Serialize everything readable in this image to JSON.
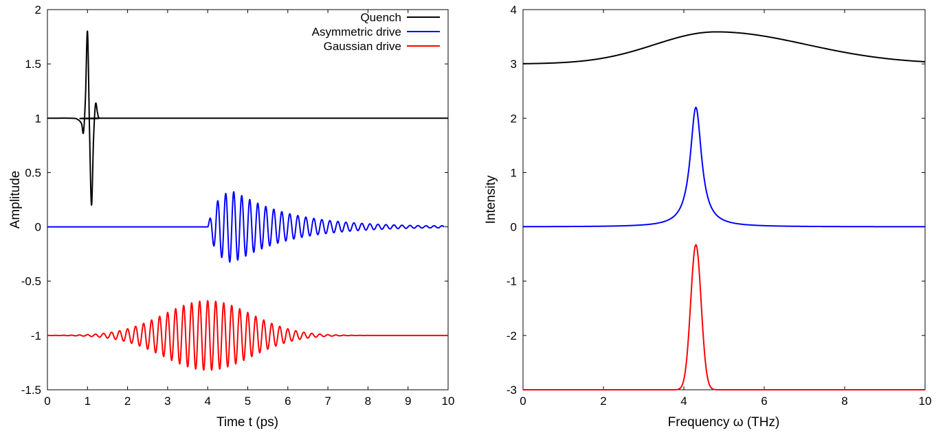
{
  "chart_data": [
    {
      "type": "line",
      "title": "",
      "xlabel": "Time t (ps)",
      "ylabel": "Amplitude",
      "xlim": [
        0,
        10
      ],
      "ylim": [
        -1.5,
        2
      ],
      "xticks": [
        0,
        1,
        2,
        3,
        4,
        5,
        6,
        7,
        8,
        9,
        10
      ],
      "xtick_labels": [
        "0",
        "1",
        "2",
        "3",
        "4",
        "5",
        "6",
        "7",
        "8",
        "9",
        "10"
      ],
      "yticks": [
        -1.5,
        -1,
        -0.5,
        0,
        0.5,
        1,
        1.5,
        2
      ],
      "ytick_labels": [
        "-1.5",
        "-1",
        "-0.5",
        "0",
        "0.5",
        "1",
        "1.5",
        "2"
      ],
      "grid": false,
      "legend": "top-right",
      "series": [
        {
          "name": "Quench",
          "color": "#000000",
          "baseline": 1,
          "description": "sharp pulse near t = 1 ps",
          "points": [
            [
              0,
              1
            ],
            [
              0.6,
              1
            ],
            [
              0.75,
              0.99
            ],
            [
              0.85,
              0.95
            ],
            [
              0.9,
              0.87
            ],
            [
              0.95,
              1.2
            ],
            [
              1.0,
              1.8
            ],
            [
              1.05,
              0.9
            ],
            [
              1.1,
              0.2
            ],
            [
              1.15,
              0.8
            ],
            [
              1.2,
              1.13
            ],
            [
              1.25,
              1.05
            ],
            [
              1.3,
              1.0
            ],
            [
              1.5,
              1
            ],
            [
              10,
              1
            ]
          ]
        },
        {
          "name": "Asymmetric drive",
          "color": "#0000ff",
          "baseline": 0,
          "onset": 4.0,
          "peak_amplitude": 0.33,
          "peak_time": 4.6,
          "carrier_period": 0.2,
          "end_amplitude": 0.01
        },
        {
          "name": "Gaussian drive",
          "color": "#ff0000",
          "baseline": -1,
          "center": 4.0,
          "peak_amplitude": 0.32,
          "sigma": 1.1,
          "carrier_period": 0.2
        }
      ]
    },
    {
      "type": "line",
      "title": "",
      "xlabel": "Frequency ω (THz)",
      "ylabel": "Intensity",
      "xlim": [
        0,
        10
      ],
      "ylim": [
        -3,
        4
      ],
      "xticks": [
        0,
        2,
        4,
        6,
        8,
        10
      ],
      "xtick_labels": [
        "0",
        "2",
        "4",
        "6",
        "8",
        "10"
      ],
      "yticks": [
        -3,
        -2,
        -1,
        0,
        1,
        2,
        3,
        4
      ],
      "ytick_labels": [
        "-3",
        "-2",
        "-1",
        "0",
        "1",
        "2",
        "3",
        "4"
      ],
      "grid": false,
      "series": [
        {
          "color": "#000000",
          "baseline": 3,
          "peak_value": 3.59,
          "peak_x": 4.8,
          "end_value": 3.04,
          "shape": "broad bump"
        },
        {
          "color": "#0000ff",
          "baseline": 0,
          "peak_value": 2.2,
          "peak_x": 4.3,
          "shape": "lorentzian"
        },
        {
          "color": "#ff0000",
          "baseline": -3,
          "peak_value": -0.33,
          "peak_x": 4.3,
          "shape": "gaussian"
        }
      ]
    }
  ]
}
